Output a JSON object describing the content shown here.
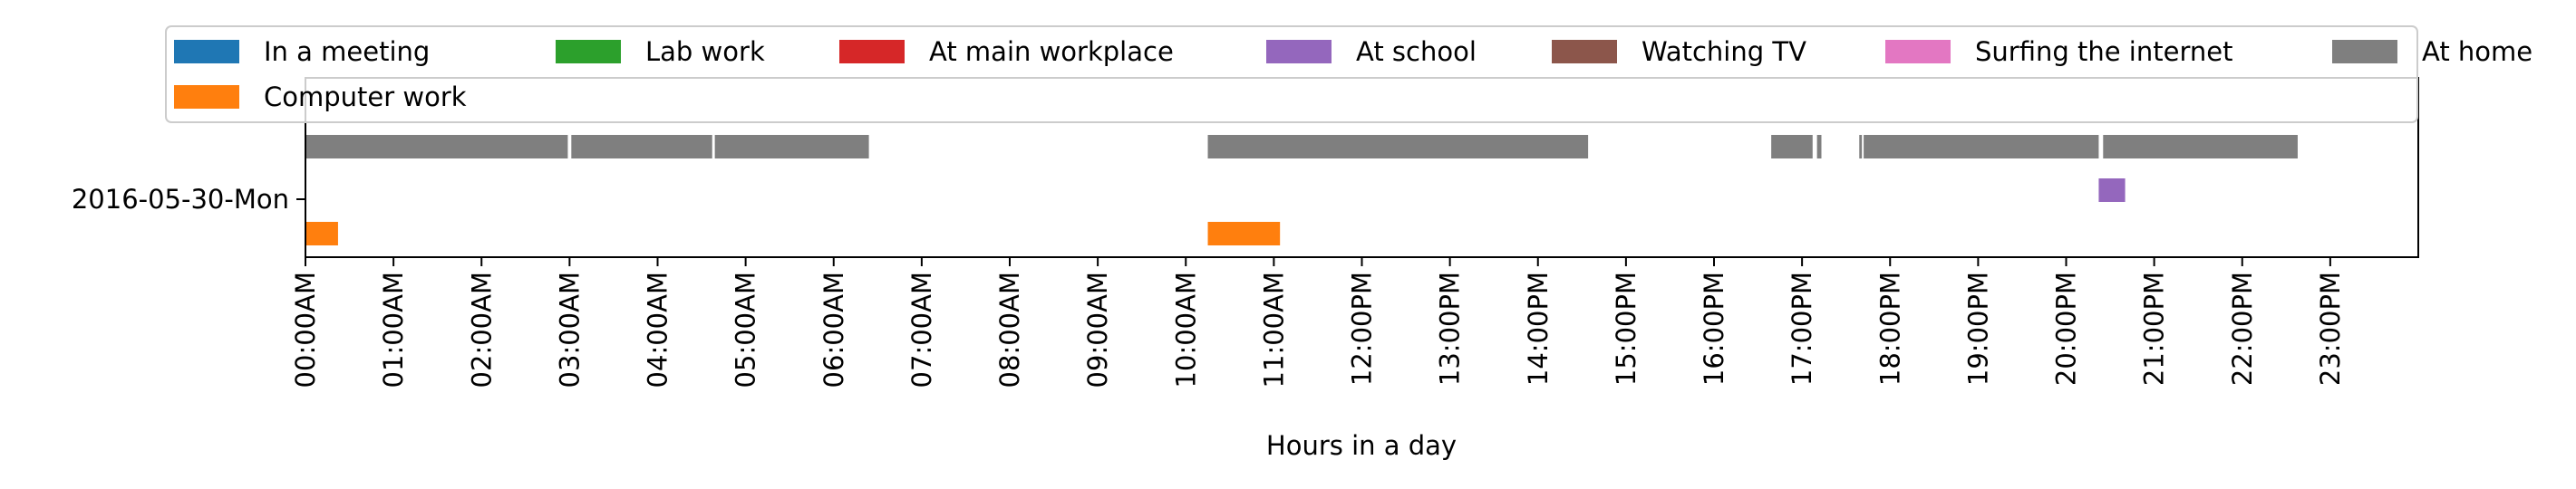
{
  "chart_data": {
    "type": "timeline",
    "xlabel": "Hours in a day",
    "ylabel": "",
    "title": "",
    "y_categories": [
      "2016-05-30-Mon"
    ],
    "x_range_hours": [
      0,
      24
    ],
    "x_ticks": [
      {
        "hour": 0,
        "label": "00:00AM"
      },
      {
        "hour": 1,
        "label": "01:00AM"
      },
      {
        "hour": 2,
        "label": "02:00AM"
      },
      {
        "hour": 3,
        "label": "03:00AM"
      },
      {
        "hour": 4,
        "label": "04:00AM"
      },
      {
        "hour": 5,
        "label": "05:00AM"
      },
      {
        "hour": 6,
        "label": "06:00AM"
      },
      {
        "hour": 7,
        "label": "07:00AM"
      },
      {
        "hour": 8,
        "label": "08:00AM"
      },
      {
        "hour": 9,
        "label": "09:00AM"
      },
      {
        "hour": 10,
        "label": "10:00AM"
      },
      {
        "hour": 11,
        "label": "11:00AM"
      },
      {
        "hour": 12,
        "label": "12:00PM"
      },
      {
        "hour": 13,
        "label": "13:00PM"
      },
      {
        "hour": 14,
        "label": "14:00PM"
      },
      {
        "hour": 15,
        "label": "15:00PM"
      },
      {
        "hour": 16,
        "label": "16:00PM"
      },
      {
        "hour": 17,
        "label": "17:00PM"
      },
      {
        "hour": 18,
        "label": "18:00PM"
      },
      {
        "hour": 19,
        "label": "19:00PM"
      },
      {
        "hour": 20,
        "label": "20:00PM"
      },
      {
        "hour": 21,
        "label": "21:00PM"
      },
      {
        "hour": 22,
        "label": "22:00PM"
      },
      {
        "hour": 23,
        "label": "23:00PM"
      }
    ],
    "legend_position": "top",
    "series": [
      {
        "name": "In a meeting",
        "color": "#1f77b4",
        "lane": 0,
        "intervals": []
      },
      {
        "name": "Computer work",
        "color": "#ff7f0e",
        "lane": 0,
        "intervals": [
          [
            0.0,
            0.37
          ],
          [
            10.25,
            11.07
          ]
        ]
      },
      {
        "name": "Lab work",
        "color": "#2ca02c",
        "lane": 1,
        "intervals": []
      },
      {
        "name": "At main workplace",
        "color": "#d62728",
        "lane": 1,
        "intervals": []
      },
      {
        "name": "At school",
        "color": "#9467bd",
        "lane": 1,
        "intervals": [
          [
            20.37,
            20.67
          ]
        ]
      },
      {
        "name": "Watching TV",
        "color": "#8c564b",
        "lane": 2,
        "intervals": []
      },
      {
        "name": "Surfing the internet",
        "color": "#e377c2",
        "lane": 2,
        "intervals": []
      },
      {
        "name": "At home",
        "color": "#7f7f7f",
        "lane": 2,
        "intervals": [
          [
            0.0,
            2.98
          ],
          [
            3.02,
            4.62
          ],
          [
            4.65,
            6.4
          ],
          [
            10.25,
            14.57
          ],
          [
            16.65,
            17.12
          ],
          [
            17.17,
            17.22
          ],
          [
            17.65,
            17.68
          ],
          [
            17.7,
            20.37
          ],
          [
            20.42,
            22.63
          ]
        ]
      }
    ]
  }
}
